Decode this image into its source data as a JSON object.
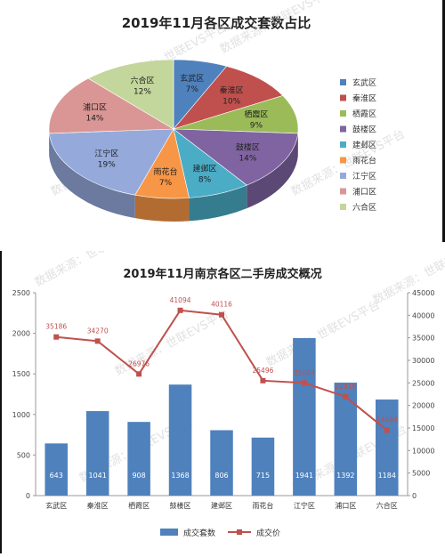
{
  "pie_chart": {
    "title": "2019年11月各区成交套数占比",
    "slices": [
      {
        "name": "玄武区",
        "value": 7,
        "label": "7%",
        "color": "#4f81bd"
      },
      {
        "name": "秦淮区",
        "value": 10,
        "label": "10%",
        "color": "#c0504d"
      },
      {
        "name": "栖霞区",
        "value": 9,
        "label": "9%",
        "color": "#9bbb59"
      },
      {
        "name": "鼓楼区",
        "value": 14,
        "label": "14%",
        "color": "#8064a2"
      },
      {
        "name": "建邺区",
        "value": 8,
        "label": "8%",
        "color": "#4bacc6"
      },
      {
        "name": "雨花台",
        "value": 7,
        "label": "7%",
        "color": "#f79646"
      },
      {
        "name": "江宁区",
        "value": 19,
        "label": "19%",
        "color": "#95aadb"
      },
      {
        "name": "浦口区",
        "value": 14,
        "label": "14%",
        "color": "#da9694"
      },
      {
        "name": "六合区",
        "value": 12,
        "label": "12%",
        "color": "#c3d69b"
      }
    ]
  },
  "combo_chart": {
    "title": "2019年11月南京各区二手房成交概况",
    "legend": {
      "bar_label": "成交套数",
      "line_label": "成交价"
    },
    "bar_color": "#4f81bd",
    "line_color": "#c0504d"
  },
  "watermark": "数据来源：世联EVS平台",
  "chart_data": [
    {
      "type": "pie",
      "title": "2019年11月各区成交套数占比",
      "categories": [
        "玄武区",
        "秦淮区",
        "栖霞区",
        "鼓楼区",
        "建邺区",
        "雨花台",
        "江宁区",
        "浦口区",
        "六合区"
      ],
      "values": [
        7,
        10,
        9,
        14,
        8,
        7,
        19,
        14,
        12
      ],
      "unit": "%",
      "legend_position": "right"
    },
    {
      "type": "bar",
      "title": "2019年11月南京各区二手房成交概况",
      "categories": [
        "玄武区",
        "秦淮区",
        "栖霞区",
        "鼓楼区",
        "建邺区",
        "雨花台",
        "江宁区",
        "浦口区",
        "六合区"
      ],
      "series": [
        {
          "name": "成交套数",
          "type": "bar",
          "axis": "left",
          "values": [
            643,
            1041,
            908,
            1368,
            806,
            715,
            1941,
            1392,
            1184
          ]
        },
        {
          "name": "成交价",
          "type": "line",
          "axis": "right",
          "values": [
            35186,
            34270,
            26976,
            41094,
            40116,
            25496,
            25003,
            21918,
            14490
          ]
        }
      ],
      "ylim_left": [
        0,
        2500
      ],
      "yticks_left": [
        "0",
        "500",
        "1000",
        "1500",
        "2000",
        "2500"
      ],
      "ylim_right": [
        0,
        45000
      ],
      "yticks_right": [
        "0",
        "5000",
        "10000",
        "15000",
        "20000",
        "25000",
        "30000",
        "35000",
        "40000",
        "45000"
      ],
      "legend_position": "bottom",
      "grid": false
    }
  ]
}
